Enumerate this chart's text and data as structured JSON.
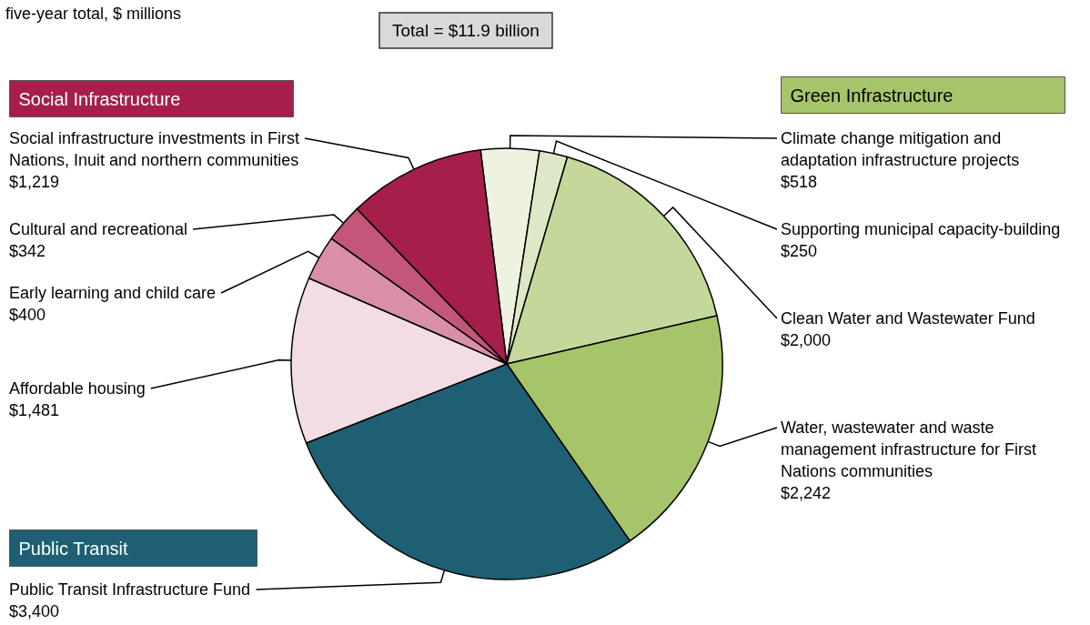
{
  "chart_data": {
    "type": "pie",
    "title": "Total = $11.9 billion",
    "subtitle": "five-year total, $ millions",
    "categories": [
      "Climate change mitigation and adaptation infrastructure projects",
      "Supporting municipal capacity-building",
      "Clean Water and Wastewater Fund",
      "Water, wastewater and waste management infrastructure for First Nations communities",
      "Public Transit Infrastructure Fund",
      "Affordable housing",
      "Early learning and child care",
      "Cultural and recreational",
      "Social infrastructure investments in First Nations, Inuit and northern communities"
    ],
    "values": [
      518,
      250,
      2000,
      2242,
      3400,
      1481,
      400,
      342,
      1219
    ],
    "value_labels": [
      "$518",
      "$250",
      "$2,000",
      "$2,242",
      "$3,400",
      "$1,481",
      "$400",
      "$342",
      "$1,219"
    ],
    "colors": [
      "#eef3e0",
      "#dde8c6",
      "#c4d89c",
      "#a6c46a",
      "#1e5f73",
      "#f3dde4",
      "#d98fa6",
      "#c4567a",
      "#a51f4a"
    ],
    "annotations": [
      "Social Infrastructure",
      "Green Infrastructure",
      "Public Transit"
    ],
    "legend": false
  }
}
